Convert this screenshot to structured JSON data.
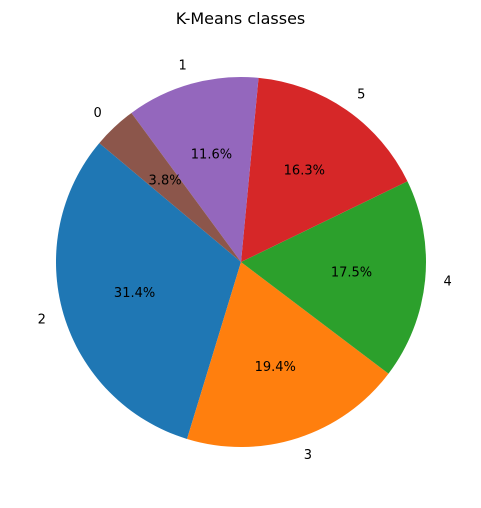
{
  "chart_data": {
    "type": "pie",
    "title": "K-Means classes",
    "start_angle_deg": 140,
    "direction": "counterclockwise",
    "slices": [
      {
        "label": "2",
        "value": 31.4,
        "pct_label": "31.4%",
        "color": "#1f77b4"
      },
      {
        "label": "3",
        "value": 19.4,
        "pct_label": "19.4%",
        "color": "#ff7f0e"
      },
      {
        "label": "4",
        "value": 17.5,
        "pct_label": "17.5%",
        "color": "#2ca02c"
      },
      {
        "label": "5",
        "value": 16.3,
        "pct_label": "16.3%",
        "color": "#d62728"
      },
      {
        "label": "1",
        "value": 11.6,
        "pct_label": "11.6%",
        "color": "#9467bd"
      },
      {
        "label": "0",
        "value": 3.8,
        "pct_label": "3.8%",
        "color": "#8c564b"
      }
    ]
  }
}
